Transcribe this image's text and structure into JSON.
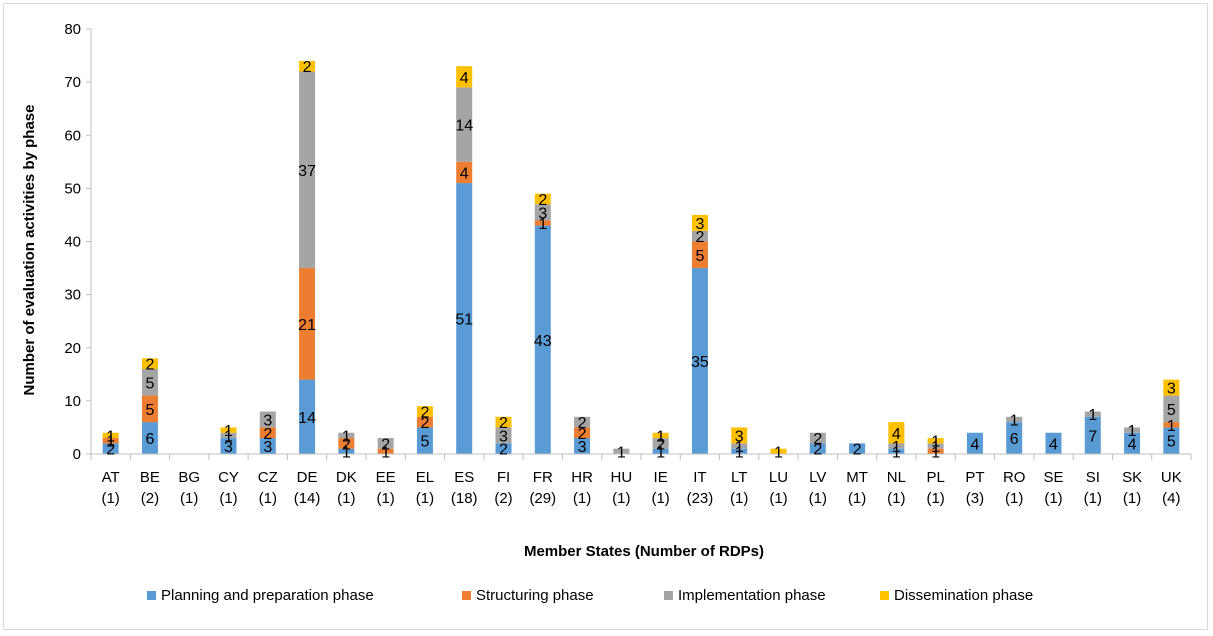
{
  "chart_data": {
    "type": "bar",
    "stacked": true,
    "title": "",
    "xlabel": "Member States (Number of RDPs)",
    "ylabel": "Number of evaluation activities by phase",
    "ylim": [
      0,
      80
    ],
    "yticks": [
      "0",
      "10",
      "20",
      "30",
      "40",
      "50",
      "60",
      "70",
      "80"
    ],
    "grid": false,
    "legend_position": "bottom",
    "categories": [
      "AT",
      "BE",
      "BG",
      "CY",
      "CZ",
      "DE",
      "DK",
      "EE",
      "EL",
      "ES",
      "FI",
      "FR",
      "HR",
      "HU",
      "IE",
      "IT",
      "LT",
      "LU",
      "LV",
      "MT",
      "NL",
      "PL",
      "PT",
      "RO",
      "SE",
      "SI",
      "SK",
      "UK"
    ],
    "category_counts": [
      "(1)",
      "(2)",
      "(1)",
      "(1)",
      "(1)",
      "(14)",
      "(1)",
      "(1)",
      "(1)",
      "(18)",
      "(2)",
      "(29)",
      "(1)",
      "(1)",
      "(1)",
      "(23)",
      "(1)",
      "(1)",
      "(1)",
      "(1)",
      "(1)",
      "(1)",
      "(3)",
      "(1)",
      "(1)",
      "(1)",
      "(1)",
      "(4)"
    ],
    "series": [
      {
        "name": "Planning and preparation phase",
        "color": "#5b9bd5",
        "values": [
          2,
          6,
          0,
          3,
          3,
          14,
          1,
          0,
          5,
          51,
          2,
          43,
          3,
          0,
          1,
          35,
          1,
          0,
          2,
          2,
          1,
          0,
          4,
          6,
          4,
          7,
          4,
          5
        ]
      },
      {
        "name": "Structuring phase",
        "color": "#ed7d31",
        "values": [
          1,
          5,
          0,
          0,
          2,
          21,
          2,
          1,
          2,
          4,
          0,
          1,
          2,
          0,
          0,
          5,
          0,
          0,
          0,
          0,
          0,
          1,
          0,
          0,
          0,
          0,
          0,
          1
        ]
      },
      {
        "name": "Implementation phase",
        "color": "#a5a5a5",
        "values": [
          0,
          5,
          0,
          1,
          3,
          37,
          1,
          2,
          0,
          14,
          3,
          3,
          2,
          1,
          2,
          2,
          1,
          0,
          2,
          0,
          1,
          1,
          0,
          1,
          0,
          1,
          1,
          5
        ]
      },
      {
        "name": "Dissemination phase",
        "color": "#ffc000",
        "values": [
          1,
          2,
          0,
          1,
          0,
          2,
          0,
          0,
          2,
          4,
          2,
          2,
          0,
          0,
          1,
          3,
          3,
          1,
          0,
          0,
          4,
          1,
          0,
          0,
          0,
          0,
          0,
          3
        ]
      }
    ]
  }
}
